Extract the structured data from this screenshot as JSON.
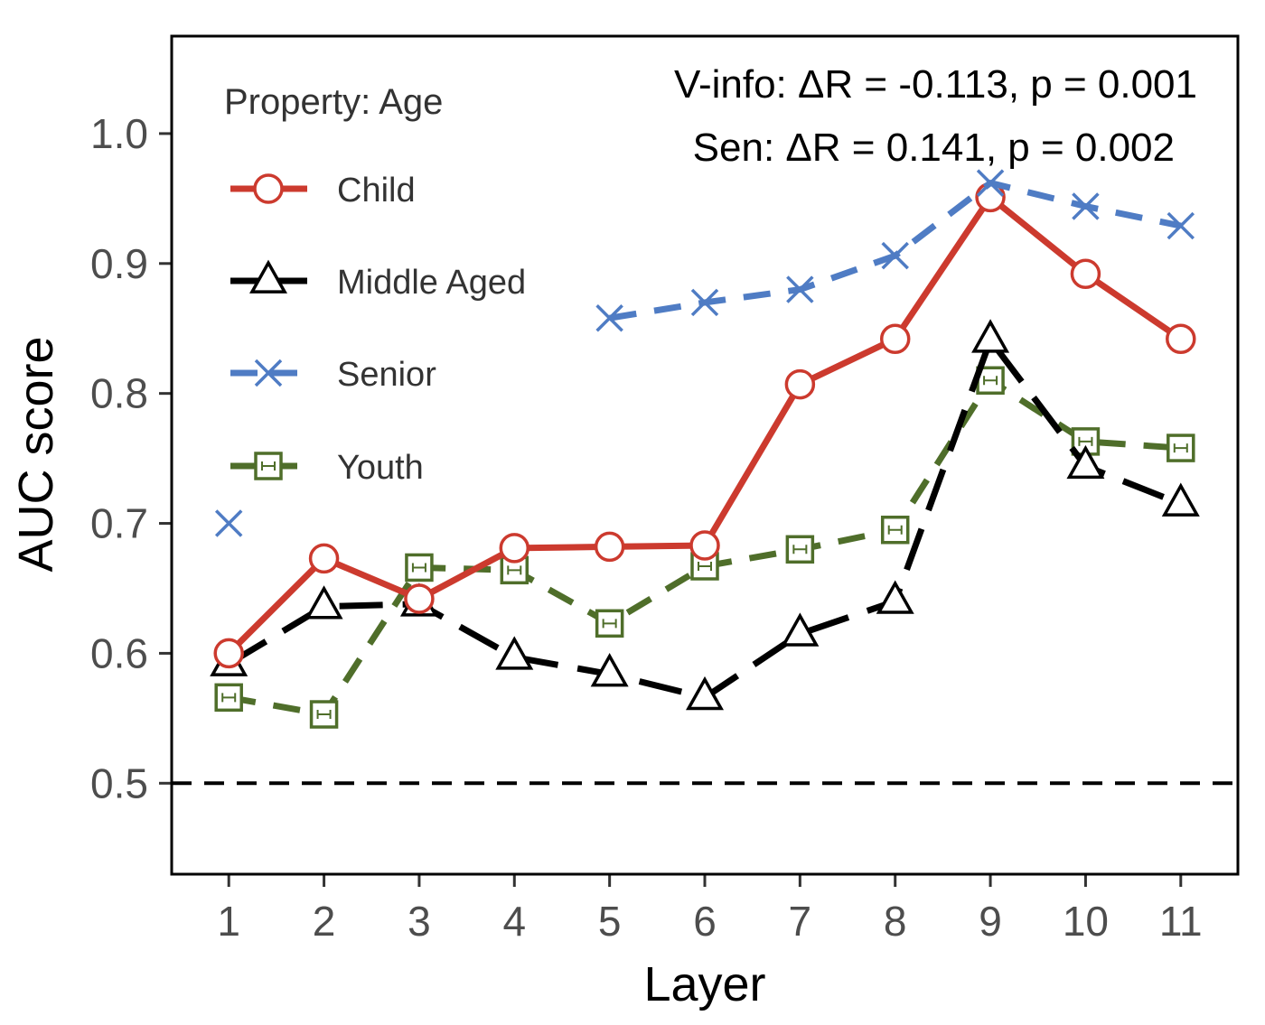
{
  "chart_data": {
    "type": "line",
    "xlabel": "Layer",
    "ylabel": "AUC score",
    "x": [
      1,
      2,
      3,
      4,
      5,
      6,
      7,
      8,
      9,
      10,
      11
    ],
    "x_tick_labels": [
      "1",
      "2",
      "3",
      "4",
      "5",
      "6",
      "7",
      "8",
      "9",
      "10",
      "11"
    ],
    "xlim": [
      0.4,
      11.6
    ],
    "ylim": [
      0.43,
      1.075
    ],
    "y_ticks": [
      0.5,
      0.6,
      0.7,
      0.8,
      0.9,
      1.0
    ],
    "y_tick_labels": [
      "0.5",
      "0.6",
      "0.7",
      "0.8",
      "0.9",
      "1.0"
    ],
    "reference_line": {
      "y": 0.5,
      "style": "dashed",
      "color": "#000000"
    },
    "grid": false,
    "legend": {
      "title": "Property: Age",
      "position": "top-left"
    },
    "annotations": [
      "V-info: ΔR = -0.113, p = 0.001",
      "Sen: ΔR = 0.141, p = 0.002"
    ],
    "series": [
      {
        "name": "Child",
        "color": "#cc3a2e",
        "marker": "circle",
        "line_style": "solid",
        "values": [
          0.6,
          0.673,
          0.642,
          0.681,
          0.682,
          0.683,
          0.807,
          0.842,
          0.951,
          0.892,
          0.842
        ]
      },
      {
        "name": "Middle Aged",
        "color": "#000000",
        "marker": "triangle",
        "line_style": "long-dash",
        "values": [
          0.592,
          0.636,
          0.638,
          0.597,
          0.584,
          0.566,
          0.615,
          0.64,
          0.841,
          0.744,
          0.715
        ]
      },
      {
        "name": "Senior",
        "color": "#4f7cc4",
        "marker": "x",
        "line_style": "dashed",
        "values": [
          0.7,
          null,
          null,
          null,
          0.858,
          0.87,
          0.88,
          0.906,
          0.962,
          0.944,
          0.929
        ]
      },
      {
        "name": "Youth",
        "color": "#4f6e2a",
        "marker": "square-errorbar",
        "line_style": "dashed",
        "values": [
          0.566,
          0.553,
          0.666,
          0.664,
          0.623,
          0.667,
          0.68,
          0.695,
          0.81,
          0.763,
          0.758
        ]
      }
    ]
  }
}
